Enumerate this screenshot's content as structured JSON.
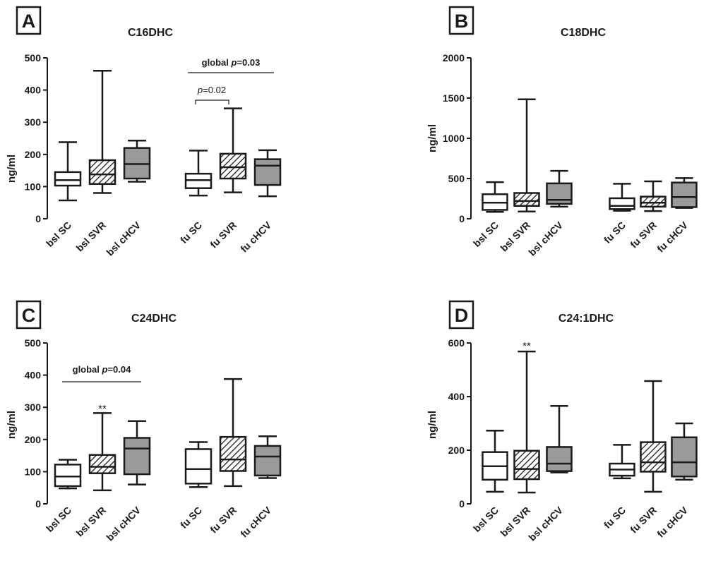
{
  "chart_data": [
    {
      "type": "box",
      "panel": "A",
      "title": "C16DHC",
      "ylabel": "ng/ml",
      "ylim": [
        0,
        500
      ],
      "yticks": [
        0,
        100,
        200,
        300,
        400,
        500
      ],
      "categories": [
        "bsl SC",
        "bsl SVR",
        "bsl cHCV",
        "fu SC",
        "fu SVR",
        "fu cHCV"
      ],
      "boxes": [
        {
          "category": "bsl SC",
          "min": 57,
          "q1": 103,
          "median": 120,
          "q3": 145,
          "max": 238,
          "fill": "white"
        },
        {
          "category": "bsl SVR",
          "min": 80,
          "q1": 108,
          "median": 138,
          "q3": 182,
          "max": 460,
          "fill": "hatched"
        },
        {
          "category": "bsl cHCV",
          "min": 115,
          "q1": 125,
          "median": 170,
          "q3": 220,
          "max": 243,
          "fill": "gray"
        },
        {
          "category": "fu SC",
          "min": 72,
          "q1": 95,
          "median": 120,
          "q3": 140,
          "max": 212,
          "fill": "white"
        },
        {
          "category": "fu SVR",
          "min": 82,
          "q1": 125,
          "median": 160,
          "q3": 202,
          "max": 343,
          "fill": "hatched"
        },
        {
          "category": "fu cHCV",
          "min": 70,
          "q1": 105,
          "median": 165,
          "q3": 185,
          "max": 213,
          "fill": "gray"
        }
      ],
      "annotations": {
        "global": {
          "prefix": "global ",
          "p": "p",
          "value": "=0.03",
          "from": "fu SC",
          "to": "fu cHCV"
        },
        "pair": {
          "p": "p",
          "value": "=0.02",
          "from": "fu SC",
          "to": "fu SVR"
        }
      }
    },
    {
      "type": "box",
      "panel": "B",
      "title": "C18DHC",
      "ylabel": "ng/ml",
      "ylim": [
        0,
        2000
      ],
      "yticks": [
        0,
        500,
        1000,
        1500,
        2000
      ],
      "categories": [
        "bsl SC",
        "bsl SVR",
        "bsl cHCV",
        "fu SC",
        "fu SVR",
        "fu cHCV"
      ],
      "boxes": [
        {
          "category": "bsl SC",
          "min": 85,
          "q1": 110,
          "median": 200,
          "q3": 305,
          "max": 455,
          "fill": "white"
        },
        {
          "category": "bsl SVR",
          "min": 90,
          "q1": 160,
          "median": 220,
          "q3": 320,
          "max": 1485,
          "fill": "hatched"
        },
        {
          "category": "bsl cHCV",
          "min": 150,
          "q1": 185,
          "median": 235,
          "q3": 440,
          "max": 595,
          "fill": "gray"
        },
        {
          "category": "fu SC",
          "min": 100,
          "q1": 120,
          "median": 160,
          "q3": 255,
          "max": 435,
          "fill": "white"
        },
        {
          "category": "fu SVR",
          "min": 95,
          "q1": 150,
          "median": 200,
          "q3": 275,
          "max": 465,
          "fill": "hatched"
        },
        {
          "category": "fu cHCV",
          "min": 135,
          "q1": 145,
          "median": 270,
          "q3": 450,
          "max": 505,
          "fill": "gray"
        }
      ]
    },
    {
      "type": "box",
      "panel": "C",
      "title": "C24DHC",
      "ylabel": "ng/ml",
      "ylim": [
        0,
        500
      ],
      "yticks": [
        0,
        100,
        200,
        300,
        400,
        500
      ],
      "categories": [
        "bsl SC",
        "bsl SVR",
        "bsl cHCV",
        "fu SC",
        "fu SVR",
        "fu cHCV"
      ],
      "boxes": [
        {
          "category": "bsl SC",
          "min": 48,
          "q1": 55,
          "median": 85,
          "q3": 122,
          "max": 137,
          "fill": "white"
        },
        {
          "category": "bsl SVR",
          "min": 42,
          "q1": 95,
          "median": 115,
          "q3": 152,
          "max": 282,
          "fill": "hatched"
        },
        {
          "category": "bsl cHCV",
          "min": 60,
          "q1": 92,
          "median": 172,
          "q3": 205,
          "max": 257,
          "fill": "gray"
        },
        {
          "category": "fu SC",
          "min": 52,
          "q1": 63,
          "median": 108,
          "q3": 170,
          "max": 192,
          "fill": "white"
        },
        {
          "category": "fu SVR",
          "min": 55,
          "q1": 102,
          "median": 138,
          "q3": 208,
          "max": 388,
          "fill": "hatched"
        },
        {
          "category": "fu cHCV",
          "min": 80,
          "q1": 88,
          "median": 147,
          "q3": 180,
          "max": 210,
          "fill": "gray"
        }
      ],
      "annotations": {
        "global": {
          "prefix": "global ",
          "p": "p",
          "value": "=0.04",
          "from": "bsl SC",
          "to": "bsl cHCV"
        },
        "stars": [
          {
            "category": "bsl SVR",
            "text": "**",
            "y": 296
          }
        ]
      }
    },
    {
      "type": "box",
      "panel": "D",
      "title": "C24:1DHC",
      "ylabel": "ng/ml",
      "ylim": [
        0,
        600
      ],
      "yticks": [
        0,
        200,
        400,
        600
      ],
      "categories": [
        "bsl SC",
        "bsl SVR",
        "bsl cHCV",
        "fu SC",
        "fu SVR",
        "fu cHCV"
      ],
      "boxes": [
        {
          "category": "bsl SC",
          "min": 45,
          "q1": 90,
          "median": 140,
          "q3": 193,
          "max": 273,
          "fill": "white"
        },
        {
          "category": "bsl SVR",
          "min": 42,
          "q1": 92,
          "median": 130,
          "q3": 198,
          "max": 568,
          "fill": "hatched"
        },
        {
          "category": "bsl cHCV",
          "min": 117,
          "q1": 122,
          "median": 150,
          "q3": 212,
          "max": 365,
          "fill": "gray"
        },
        {
          "category": "fu SC",
          "min": 95,
          "q1": 105,
          "median": 128,
          "q3": 150,
          "max": 220,
          "fill": "white"
        },
        {
          "category": "fu SVR",
          "min": 45,
          "q1": 120,
          "median": 155,
          "q3": 230,
          "max": 458,
          "fill": "hatched"
        },
        {
          "category": "fu cHCV",
          "min": 90,
          "q1": 102,
          "median": 155,
          "q3": 248,
          "max": 300,
          "fill": "gray"
        }
      ],
      "annotations": {
        "stars": [
          {
            "category": "bsl SVR",
            "text": "**",
            "y": 590
          }
        ]
      }
    }
  ],
  "colors": {
    "line": "#1a1a1a",
    "gray_fill": "#9a9a9a",
    "white_fill": "#ffffff",
    "hatch": "#1a1a1a"
  }
}
